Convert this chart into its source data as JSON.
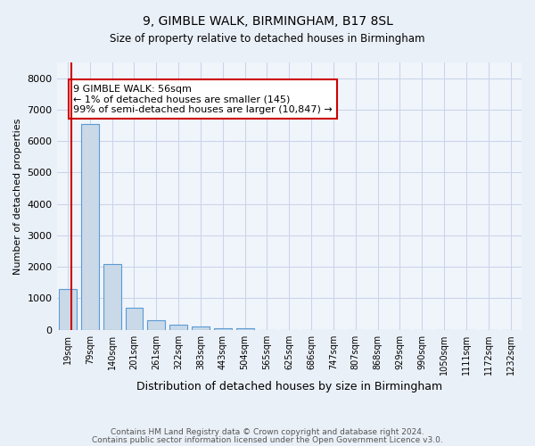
{
  "title": "9, GIMBLE WALK, BIRMINGHAM, B17 8SL",
  "subtitle": "Size of property relative to detached houses in Birmingham",
  "xlabel": "Distribution of detached houses by size in Birmingham",
  "ylabel": "Number of detached properties",
  "categories": [
    "19sqm",
    "79sqm",
    "140sqm",
    "201sqm",
    "261sqm",
    "322sqm",
    "383sqm",
    "443sqm",
    "504sqm",
    "565sqm",
    "625sqm",
    "686sqm",
    "747sqm",
    "807sqm",
    "868sqm",
    "929sqm",
    "990sqm",
    "1050sqm",
    "1111sqm",
    "1172sqm",
    "1232sqm"
  ],
  "values": [
    1300,
    6550,
    2080,
    690,
    290,
    150,
    95,
    55,
    55,
    0,
    0,
    0,
    0,
    0,
    0,
    0,
    0,
    0,
    0,
    0,
    0
  ],
  "bar_color": "#c9d9e8",
  "bar_edge_color": "#5b9bd5",
  "annotation_text": "9 GIMBLE WALK: 56sqm\n← 1% of detached houses are smaller (145)\n99% of semi-detached houses are larger (10,847) →",
  "annotation_box_color": "white",
  "annotation_box_edge_color": "#cc0000",
  "property_line_color": "#cc0000",
  "property_line_x": 0.18,
  "ylim": [
    0,
    8500
  ],
  "yticks": [
    0,
    1000,
    2000,
    3000,
    4000,
    5000,
    6000,
    7000,
    8000
  ],
  "footnote1": "Contains HM Land Registry data © Crown copyright and database right 2024.",
  "footnote2": "Contains public sector information licensed under the Open Government Licence v3.0.",
  "background_color": "#eaf0f8",
  "plot_background_color": "#f0f4fb",
  "grid_color": "#c8d4e8"
}
